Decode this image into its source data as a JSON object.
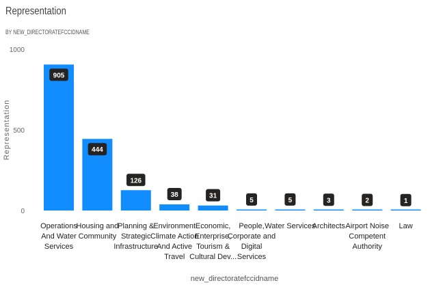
{
  "header": {
    "title": "Representation",
    "subtitle": "BY NEW_DIRECTORATEFCCIDNAME"
  },
  "colors": {
    "bar": "#118DFF",
    "label_bg": "#252423"
  },
  "chart_data": {
    "type": "bar",
    "title": "Representation",
    "subtitle": "BY NEW_DIRECTORATEFCCIDNAME",
    "xlabel": "new_directoratefccidname",
    "ylabel": "Representation",
    "ylim": [
      0,
      1000
    ],
    "yticks": [
      0,
      500,
      1000
    ],
    "grid": false,
    "categories": [
      [
        "Operations",
        "And Water",
        "Services"
      ],
      [
        "Housing and",
        "Community"
      ],
      [
        "Planning &",
        "Strategic",
        "Infrastructure"
      ],
      [
        "Environment",
        "Climate Action",
        "And Active",
        "Travel"
      ],
      [
        "Economic,",
        "Enterprise,",
        "Tourism &",
        "Cultural Dev..."
      ],
      [
        "People,",
        "Corporate and",
        "Digital",
        "Services"
      ],
      [
        "Water Services"
      ],
      [
        "Architects"
      ],
      [
        "Airport Noise",
        "Competent",
        "Authority"
      ],
      [
        "Law"
      ]
    ],
    "values": [
      905,
      444,
      126,
      38,
      31,
      5,
      5,
      3,
      2,
      1
    ]
  }
}
